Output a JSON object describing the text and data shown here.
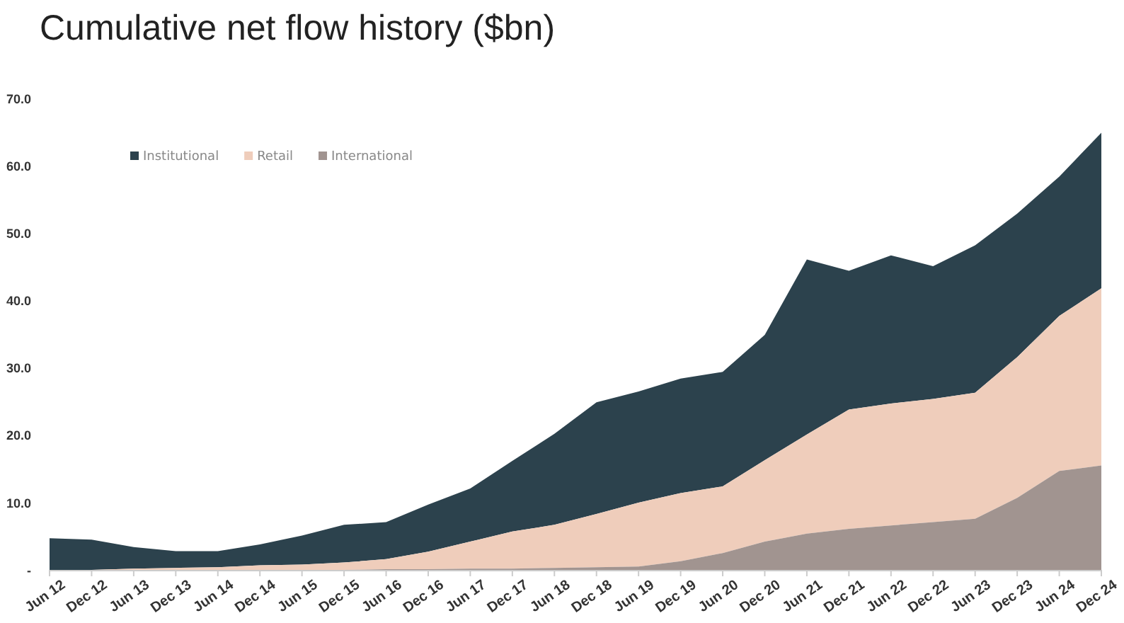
{
  "chart_data": {
    "type": "area",
    "title": "Cumulative net flow history ($bn)",
    "stacked": true,
    "legend": "top left",
    "grid": false,
    "categories": [
      "Jun 12",
      "Dec 12",
      "Jun 13",
      "Dec 13",
      "Jun 14",
      "Dec 14",
      "Jun 15",
      "Dec 15",
      "Jun 16",
      "Dec 16",
      "Jun 17",
      "Dec 17",
      "Jun 18",
      "Dec 18",
      "Jun 19",
      "Dec 19",
      "Jun 20",
      "Dec 20",
      "Jun 21",
      "Dec 21",
      "Jun 22",
      "Dec 22",
      "Jun 23",
      "Dec 23",
      "Jun 24",
      "Dec 24"
    ],
    "ylim": [
      0,
      70
    ],
    "yticks": [
      {
        "value": 0,
        "label": "-"
      },
      {
        "value": 10,
        "label": "10.0"
      },
      {
        "value": 20,
        "label": "20.0"
      },
      {
        "value": 30,
        "label": "30.0"
      },
      {
        "value": 40,
        "label": "40.0"
      },
      {
        "value": 50,
        "label": "50.0"
      },
      {
        "value": 60,
        "label": "60.0"
      },
      {
        "value": 70,
        "label": "70.0"
      }
    ],
    "series": [
      {
        "name": "International",
        "color": "#a19490",
        "values": [
          0,
          0,
          0.1,
          0.1,
          0.1,
          0.1,
          0.1,
          0.1,
          0.2,
          0.2,
          0.3,
          0.3,
          0.4,
          0.5,
          0.6,
          1.4,
          2.6,
          4.3,
          5.5,
          6.2,
          6.7,
          7.2,
          7.7,
          10.8,
          14.8,
          15.6
        ]
      },
      {
        "name": "Retail",
        "color": "#efcdbb",
        "values": [
          0,
          0.1,
          0.2,
          0.3,
          0.4,
          0.7,
          0.8,
          1.1,
          1.5,
          2.6,
          4.0,
          5.5,
          6.4,
          7.9,
          9.5,
          10.1,
          9.9,
          12.1,
          14.7,
          17.7,
          18.1,
          18.3,
          18.7,
          20.9,
          23.0,
          26.3
        ]
      },
      {
        "name": "Institutional",
        "color": "#2c424d",
        "values": [
          4.8,
          4.5,
          3.2,
          2.5,
          2.4,
          3.1,
          4.3,
          5.6,
          5.5,
          7.0,
          7.9,
          10.5,
          13.5,
          16.6,
          16.5,
          17.0,
          17.0,
          18.6,
          26.0,
          20.6,
          22.0,
          19.7,
          21.9,
          21.3,
          20.7,
          23.1
        ]
      }
    ]
  }
}
